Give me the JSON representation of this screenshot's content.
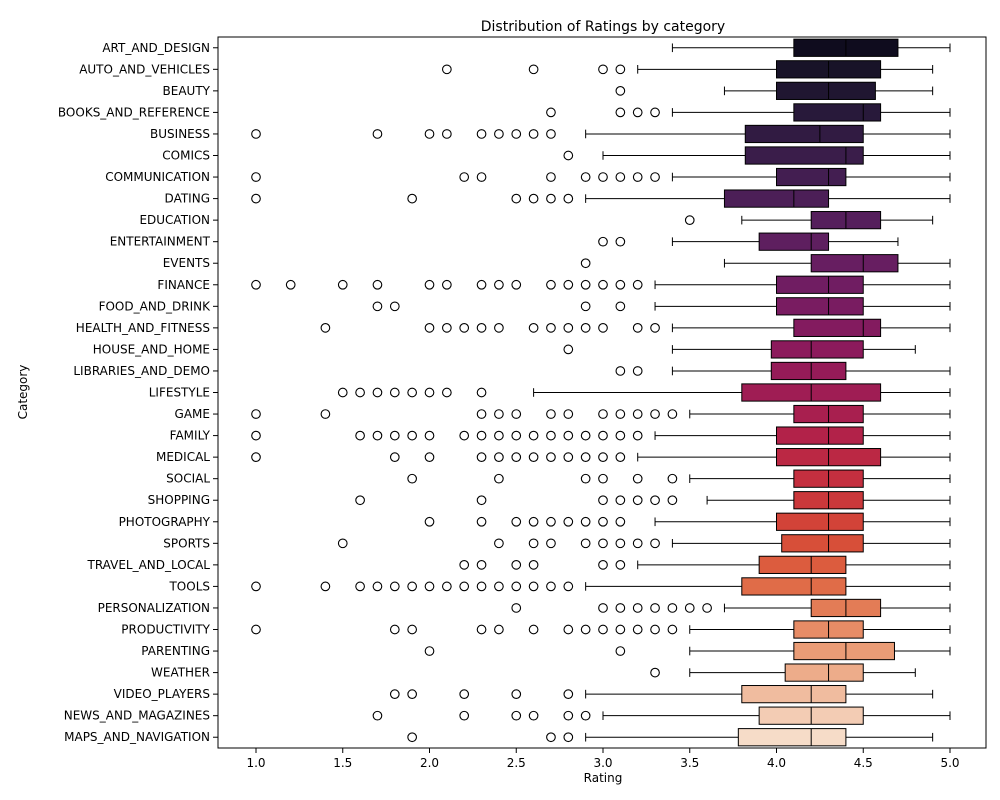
{
  "chart_data": {
    "type": "box",
    "title": "Distribution of Ratings by category",
    "xlabel": "Rating",
    "ylabel": "Category",
    "xlim": [
      0.79,
      5.2
    ],
    "xticks": [
      "1.0",
      "1.5",
      "2.0",
      "2.5",
      "3.0",
      "3.5",
      "4.0",
      "4.5",
      "5.0"
    ],
    "orientation": "horizontal",
    "grid": false,
    "palette": "rocket",
    "series": [
      {
        "category": "ART_AND_DESIGN",
        "whisker_low": 3.4,
        "q1": 4.1,
        "median": 4.4,
        "q3": 4.7,
        "whisker_high": 5.0,
        "outliers": [],
        "color": "#0f0c1e"
      },
      {
        "category": "AUTO_AND_VEHICLES",
        "whisker_low": 3.2,
        "q1": 4.0,
        "median": 4.3,
        "q3": 4.6,
        "whisker_high": 4.9,
        "outliers": [
          2.1,
          2.6,
          3.0,
          3.1
        ],
        "color": "#181328"
      },
      {
        "category": "BEAUTY",
        "whisker_low": 3.7,
        "q1": 4.0,
        "median": 4.3,
        "q3": 4.57,
        "whisker_high": 4.9,
        "outliers": [
          3.1
        ],
        "color": "#201631"
      },
      {
        "category": "BOOKS_AND_REFERENCE",
        "whisker_low": 3.4,
        "q1": 4.1,
        "median": 4.5,
        "q3": 4.6,
        "whisker_high": 5.0,
        "outliers": [
          2.7,
          3.1,
          3.2,
          3.3
        ],
        "color": "#28193a"
      },
      {
        "category": "BUSINESS",
        "whisker_low": 2.9,
        "q1": 3.82,
        "median": 4.25,
        "q3": 4.5,
        "whisker_high": 5.0,
        "outliers": [
          1.0,
          1.7,
          2.0,
          2.1,
          2.3,
          2.4,
          2.5,
          2.6,
          2.7
        ],
        "color": "#311b42"
      },
      {
        "category": "COMICS",
        "whisker_low": 3.0,
        "q1": 3.82,
        "median": 4.4,
        "q3": 4.5,
        "whisker_high": 5.0,
        "outliers": [
          2.8
        ],
        "color": "#3a1d4a"
      },
      {
        "category": "COMMUNICATION",
        "whisker_low": 3.4,
        "q1": 4.0,
        "median": 4.3,
        "q3": 4.4,
        "whisker_high": 5.0,
        "outliers": [
          1.0,
          2.2,
          2.3,
          2.7,
          2.9,
          3.0,
          3.1,
          3.2,
          3.3
        ],
        "color": "#431e51"
      },
      {
        "category": "DATING",
        "whisker_low": 2.9,
        "q1": 3.7,
        "median": 4.1,
        "q3": 4.3,
        "whisker_high": 5.0,
        "outliers": [
          1.0,
          1.9,
          2.5,
          2.6,
          2.7,
          2.8
        ],
        "color": "#4c1f57"
      },
      {
        "category": "EDUCATION",
        "whisker_low": 3.8,
        "q1": 4.2,
        "median": 4.4,
        "q3": 4.6,
        "whisker_high": 4.9,
        "outliers": [
          3.5
        ],
        "color": "#551f5c"
      },
      {
        "category": "ENTERTAINMENT",
        "whisker_low": 3.4,
        "q1": 3.9,
        "median": 4.2,
        "q3": 4.3,
        "whisker_high": 4.7,
        "outliers": [
          3.0,
          3.1
        ],
        "color": "#5e1f5f"
      },
      {
        "category": "EVENTS",
        "whisker_low": 3.7,
        "q1": 4.2,
        "median": 4.5,
        "q3": 4.7,
        "whisker_high": 5.0,
        "outliers": [
          2.9
        ],
        "color": "#671e61"
      },
      {
        "category": "FINANCE",
        "whisker_low": 3.3,
        "q1": 4.0,
        "median": 4.3,
        "q3": 4.5,
        "whisker_high": 5.0,
        "outliers": [
          1.0,
          1.2,
          1.5,
          1.7,
          2.0,
          2.1,
          2.3,
          2.4,
          2.5,
          2.7,
          2.8,
          2.9,
          3.0,
          3.1,
          3.2
        ],
        "color": "#701d62"
      },
      {
        "category": "FOOD_AND_DRINK",
        "whisker_low": 3.3,
        "q1": 4.0,
        "median": 4.3,
        "q3": 4.5,
        "whisker_high": 5.0,
        "outliers": [
          1.7,
          1.8,
          2.9,
          3.1
        ],
        "color": "#791c61"
      },
      {
        "category": "HEALTH_AND_FITNESS",
        "whisker_low": 3.4,
        "q1": 4.1,
        "median": 4.5,
        "q3": 4.6,
        "whisker_high": 5.0,
        "outliers": [
          1.4,
          2.0,
          2.1,
          2.2,
          2.3,
          2.4,
          2.6,
          2.7,
          2.8,
          2.9,
          3.0,
          3.2,
          3.3
        ],
        "color": "#831b5f"
      },
      {
        "category": "HOUSE_AND_HOME",
        "whisker_low": 3.4,
        "q1": 3.97,
        "median": 4.2,
        "q3": 4.5,
        "whisker_high": 4.8,
        "outliers": [
          2.8
        ],
        "color": "#8c1a5c"
      },
      {
        "category": "LIBRARIES_AND_DEMO",
        "whisker_low": 3.4,
        "q1": 3.97,
        "median": 4.2,
        "q3": 4.4,
        "whisker_high": 5.0,
        "outliers": [
          3.1,
          3.2
        ],
        "color": "#951b58"
      },
      {
        "category": "LIFESTYLE",
        "whisker_low": 2.6,
        "q1": 3.8,
        "median": 4.2,
        "q3": 4.6,
        "whisker_high": 5.0,
        "outliers": [
          1.5,
          1.6,
          1.7,
          1.8,
          1.9,
          2.0,
          2.1,
          2.3
        ],
        "color": "#9f1d54"
      },
      {
        "category": "GAME",
        "whisker_low": 3.5,
        "q1": 4.1,
        "median": 4.3,
        "q3": 4.5,
        "whisker_high": 5.0,
        "outliers": [
          1.0,
          1.4,
          2.3,
          2.4,
          2.5,
          2.7,
          2.8,
          3.0,
          3.1,
          3.2,
          3.3,
          3.4
        ],
        "color": "#a81f4f"
      },
      {
        "category": "FAMILY",
        "whisker_low": 3.3,
        "q1": 4.0,
        "median": 4.3,
        "q3": 4.5,
        "whisker_high": 5.0,
        "outliers": [
          1.0,
          1.6,
          1.7,
          1.8,
          1.9,
          2.0,
          2.2,
          2.3,
          2.4,
          2.5,
          2.6,
          2.7,
          2.8,
          2.9,
          3.0,
          3.1,
          3.2
        ],
        "color": "#b22249"
      },
      {
        "category": "MEDICAL",
        "whisker_low": 3.2,
        "q1": 4.0,
        "median": 4.3,
        "q3": 4.6,
        "whisker_high": 5.0,
        "outliers": [
          1.0,
          1.8,
          2.0,
          2.3,
          2.4,
          2.5,
          2.6,
          2.7,
          2.8,
          2.9,
          3.0,
          3.1
        ],
        "color": "#bb2844"
      },
      {
        "category": "SOCIAL",
        "whisker_low": 3.5,
        "q1": 4.1,
        "median": 4.3,
        "q3": 4.5,
        "whisker_high": 5.0,
        "outliers": [
          1.9,
          2.4,
          2.9,
          3.0,
          3.2,
          3.4
        ],
        "color": "#c42f3f"
      },
      {
        "category": "SHOPPING",
        "whisker_low": 3.6,
        "q1": 4.1,
        "median": 4.3,
        "q3": 4.5,
        "whisker_high": 5.0,
        "outliers": [
          1.6,
          2.3,
          3.0,
          3.1,
          3.2,
          3.3,
          3.4
        ],
        "color": "#cb383b"
      },
      {
        "category": "PHOTOGRAPHY",
        "whisker_low": 3.3,
        "q1": 4.0,
        "median": 4.3,
        "q3": 4.5,
        "whisker_high": 5.0,
        "outliers": [
          2.0,
          2.3,
          2.5,
          2.6,
          2.7,
          2.8,
          2.9,
          3.0,
          3.1
        ],
        "color": "#d24338"
      },
      {
        "category": "SPORTS",
        "whisker_low": 3.4,
        "q1": 4.03,
        "median": 4.3,
        "q3": 4.5,
        "whisker_high": 5.0,
        "outliers": [
          1.5,
          2.4,
          2.6,
          2.7,
          2.9,
          3.0,
          3.1,
          3.2,
          3.3
        ],
        "color": "#d74f39"
      },
      {
        "category": "TRAVEL_AND_LOCAL",
        "whisker_low": 3.2,
        "q1": 3.9,
        "median": 4.2,
        "q3": 4.4,
        "whisker_high": 5.0,
        "outliers": [
          2.2,
          2.3,
          2.5,
          2.6,
          3.0,
          3.1
        ],
        "color": "#dc5c3e"
      },
      {
        "category": "TOOLS",
        "whisker_low": 2.9,
        "q1": 3.8,
        "median": 4.2,
        "q3": 4.4,
        "whisker_high": 5.0,
        "outliers": [
          1.0,
          1.4,
          1.6,
          1.7,
          1.8,
          1.9,
          2.0,
          2.1,
          2.2,
          2.3,
          2.4,
          2.5,
          2.6,
          2.7,
          2.8
        ],
        "color": "#e06c48"
      },
      {
        "category": "PERSONALIZATION",
        "whisker_low": 3.7,
        "q1": 4.2,
        "median": 4.4,
        "q3": 4.6,
        "whisker_high": 5.0,
        "outliers": [
          2.5,
          3.0,
          3.1,
          3.2,
          3.3,
          3.4,
          3.5,
          3.6
        ],
        "color": "#e37c56"
      },
      {
        "category": "PRODUCTIVITY",
        "whisker_low": 3.5,
        "q1": 4.1,
        "median": 4.3,
        "q3": 4.5,
        "whisker_high": 5.0,
        "outliers": [
          1.0,
          1.8,
          1.9,
          2.3,
          2.4,
          2.6,
          2.8,
          2.9,
          3.0,
          3.1,
          3.2,
          3.3,
          3.4
        ],
        "color": "#e78c66"
      },
      {
        "category": "PARENTING",
        "whisker_low": 3.5,
        "q1": 4.1,
        "median": 4.4,
        "q3": 4.68,
        "whisker_high": 5.0,
        "outliers": [
          2.0,
          3.1
        ],
        "color": "#ea9c76"
      },
      {
        "category": "WEATHER",
        "whisker_low": 3.5,
        "q1": 4.05,
        "median": 4.3,
        "q3": 4.5,
        "whisker_high": 4.8,
        "outliers": [
          3.3
        ],
        "color": "#edac8a"
      },
      {
        "category": "VIDEO_PLAYERS",
        "whisker_low": 2.9,
        "q1": 3.8,
        "median": 4.2,
        "q3": 4.4,
        "whisker_high": 4.9,
        "outliers": [
          1.8,
          1.9,
          2.2,
          2.5,
          2.8
        ],
        "color": "#f0bc9f"
      },
      {
        "category": "NEWS_AND_MAGAZINES",
        "whisker_low": 3.0,
        "q1": 3.9,
        "median": 4.2,
        "q3": 4.5,
        "whisker_high": 5.0,
        "outliers": [
          1.7,
          2.2,
          2.5,
          2.6,
          2.8,
          2.9
        ],
        "color": "#f3ccb4"
      },
      {
        "category": "MAPS_AND_NAVIGATION",
        "whisker_low": 2.9,
        "q1": 3.78,
        "median": 4.2,
        "q3": 4.4,
        "whisker_high": 4.9,
        "outliers": [
          1.9,
          2.7,
          2.8
        ],
        "color": "#f6dcc8"
      }
    ]
  }
}
